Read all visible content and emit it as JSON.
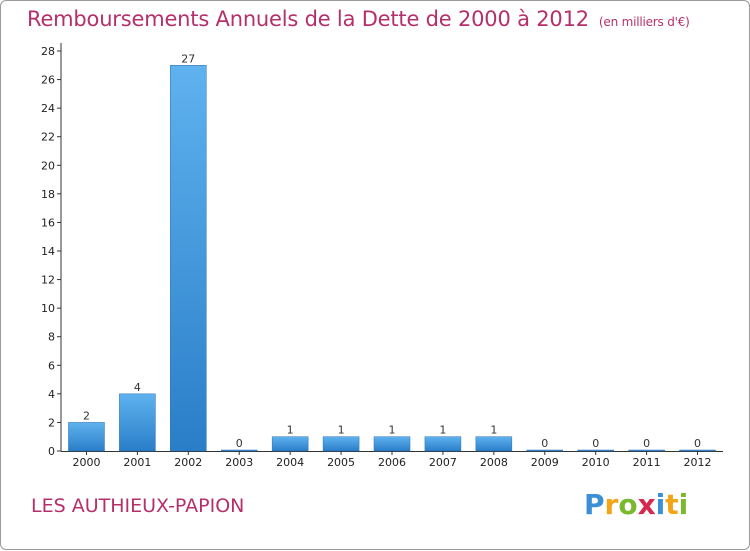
{
  "title": "Remboursements Annuels de la Dette de 2000 à 2012",
  "subtitle": "(en milliers d'€)",
  "commune": "LES AUTHIEUX-PAPION",
  "logo": {
    "letters": [
      "P",
      "r",
      "o",
      "x",
      "i",
      "t",
      "i"
    ],
    "colors": [
      "#3a8fd6",
      "#f2a516",
      "#7ab92d",
      "#d6284b",
      "#3a8fd6",
      "#f2a516",
      "#7ab92d"
    ]
  },
  "colors": {
    "bar_top": "#5fb2ee",
    "bar_bottom": "#2a7ec8",
    "accent": "#b5306b"
  },
  "chart_data": {
    "type": "bar",
    "title": "Remboursements Annuels de la Dette de 2000 à 2012",
    "subtitle": "(en milliers d'€)",
    "categories": [
      "2000",
      "2001",
      "2002",
      "2003",
      "2004",
      "2005",
      "2006",
      "2007",
      "2008",
      "2009",
      "2010",
      "2011",
      "2012"
    ],
    "values": [
      2,
      4,
      27,
      0,
      1,
      1,
      1,
      1,
      1,
      0,
      0,
      0,
      0
    ],
    "ylim": [
      0,
      28
    ],
    "yticks": [
      0,
      2,
      4,
      6,
      8,
      10,
      12,
      14,
      16,
      18,
      20,
      22,
      24,
      26,
      28
    ],
    "xlabel": "",
    "ylabel": ""
  }
}
